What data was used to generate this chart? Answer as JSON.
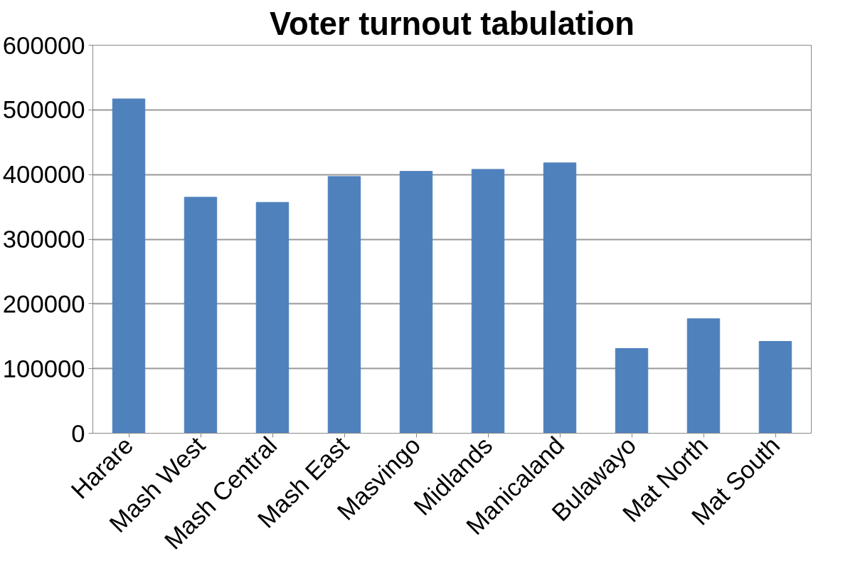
{
  "chart_data": {
    "type": "bar",
    "title": "Voter turnout tabulation",
    "categories": [
      "Harare",
      "Mash West",
      "Mash Central",
      "Mash East",
      "Masvingo",
      "Midlands",
      "Manicaland",
      "Bulawayo",
      "Mat North",
      "Mat South"
    ],
    "values": [
      517000,
      365000,
      357000,
      397000,
      405000,
      408000,
      418000,
      131000,
      177000,
      142000
    ],
    "color": "#4f81bd",
    "ylim": [
      0,
      600000
    ],
    "yticks": [
      0,
      100000,
      200000,
      300000,
      400000,
      500000,
      600000
    ],
    "grid": "y"
  }
}
